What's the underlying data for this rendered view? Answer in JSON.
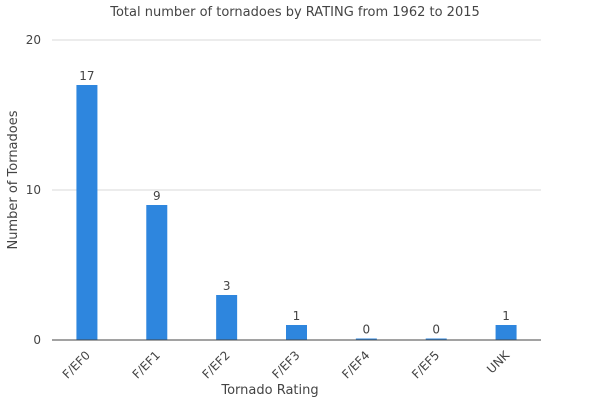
{
  "chart_data": {
    "type": "bar",
    "title": "Total number of tornadoes by RATING from 1962 to 2015",
    "xlabel": "Tornado Rating",
    "ylabel": "Number of Tornadoes",
    "categories": [
      "F/EF0",
      "F/EF1",
      "F/EF2",
      "F/EF3",
      "F/EF4",
      "F/EF5",
      "UNK"
    ],
    "values": [
      17,
      9,
      3,
      1,
      0,
      0,
      1
    ],
    "data_labels": [
      "17",
      "9",
      "3",
      "1",
      "0",
      "0",
      "1"
    ],
    "ylim": [
      0,
      20
    ],
    "yticks": [
      "0",
      "10",
      "20"
    ],
    "grid": true,
    "legend": "none",
    "colors": {
      "bar": "#2e86de",
      "text": "#444444",
      "grid": "#d9d9d9"
    }
  }
}
